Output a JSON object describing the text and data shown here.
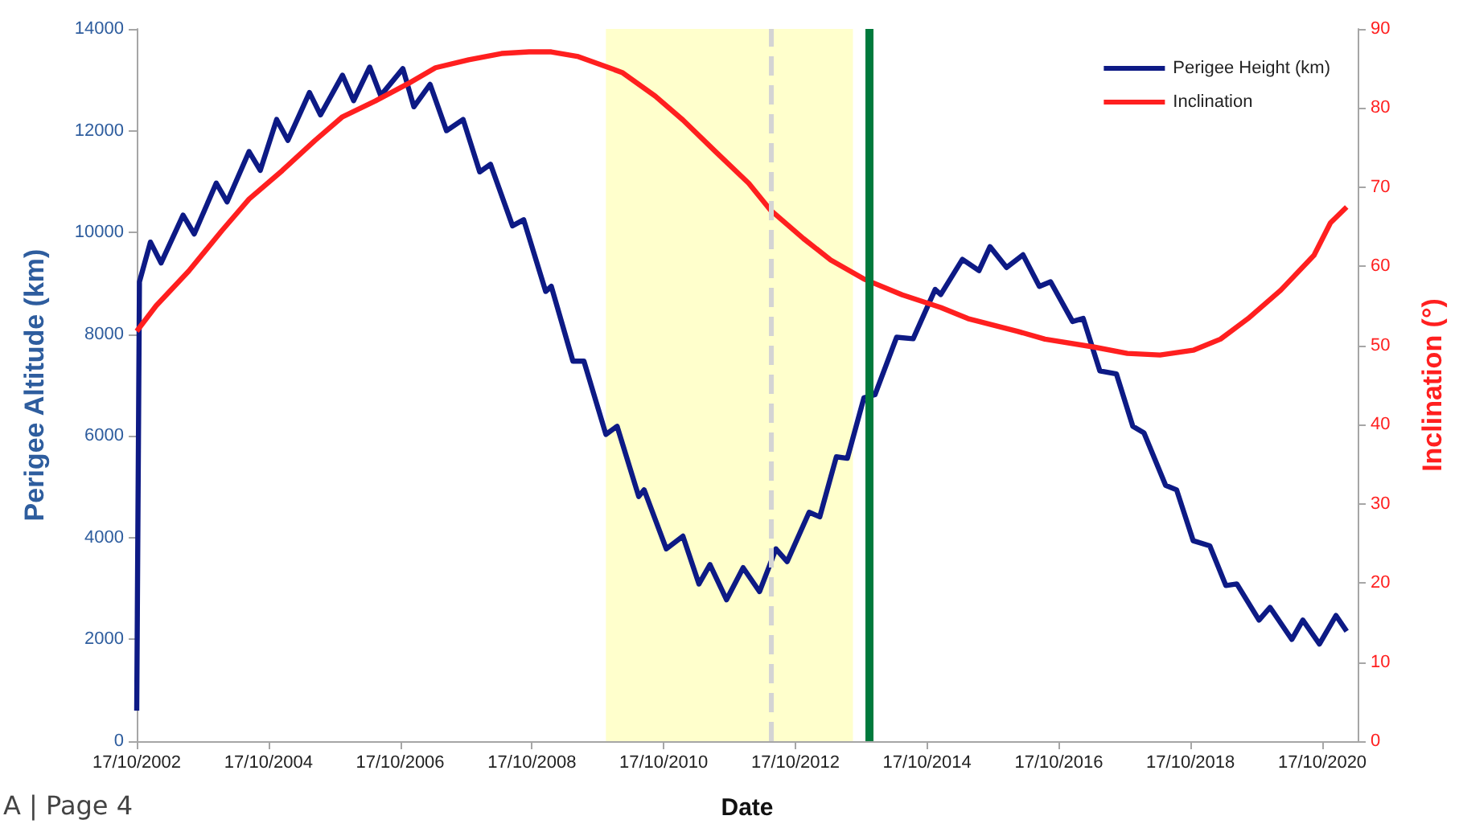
{
  "chart_data": {
    "type": "line",
    "xlabel": "Date",
    "ylabel": "Perigee Altitude (km)",
    "y2label": "Inclination (°)",
    "legend": "top right",
    "xlim": [
      "2002-10-17",
      "2021-05-01"
    ],
    "xticks": [
      {
        "value": "2002-10-17",
        "label": "17/10/2002"
      },
      {
        "value": "2004-10-17",
        "label": "17/10/2004"
      },
      {
        "value": "2006-10-17",
        "label": "17/10/2006"
      },
      {
        "value": "2008-10-17",
        "label": "17/10/2008"
      },
      {
        "value": "2010-10-17",
        "label": "17/10/2010"
      },
      {
        "value": "2012-10-17",
        "label": "17/10/2012"
      },
      {
        "value": "2014-10-17",
        "label": "17/10/2014"
      },
      {
        "value": "2016-10-17",
        "label": "17/10/2016"
      },
      {
        "value": "2018-10-17",
        "label": "17/10/2018"
      },
      {
        "value": "2020-10-17",
        "label": "17/10/2020"
      }
    ],
    "ylim": [
      0,
      14000
    ],
    "yticks": [
      0,
      2000,
      4000,
      6000,
      8000,
      10000,
      12000,
      14000
    ],
    "y2lim": [
      0,
      90
    ],
    "y2ticks": [
      0,
      10,
      20,
      30,
      40,
      50,
      60,
      70,
      80,
      90
    ],
    "series": [
      {
        "name": "Perigee Height (km)",
        "color": "#0d1a85",
        "x": [
          "2002-10-17",
          "2002-11",
          "2003-01",
          "2003-03",
          "2003-07",
          "2003-09",
          "2004-01",
          "2004-03",
          "2004-07",
          "2004-09",
          "2004-12",
          "2005-02",
          "2005-06",
          "2005-08",
          "2005-12",
          "2006-02",
          "2006-05",
          "2006-07",
          "2006-11",
          "2007-01",
          "2007-04",
          "2007-07",
          "2007-10",
          "2008-01",
          "2008-03",
          "2008-07",
          "2008-09",
          "2009-01",
          "2009-02",
          "2009-06",
          "2009-08",
          "2009-10",
          "2009-12",
          "2010-02",
          "2010-06",
          "2010-07",
          "2010-11",
          "2011-02",
          "2011-05",
          "2011-07",
          "2011-10",
          "2012-01",
          "2012-04",
          "2012-07",
          "2012-09",
          "2013-01",
          "2013-03",
          "2013-06",
          "2013-08",
          "2013-11",
          "2014-01",
          "2014-05",
          "2014-08",
          "2014-12",
          "2015-01",
          "2015-05",
          "2015-08",
          "2015-10",
          "2016-01",
          "2016-04",
          "2016-07",
          "2016-09",
          "2017-01",
          "2017-03",
          "2017-06",
          "2017-09",
          "2017-12",
          "2018-02",
          "2018-06",
          "2018-08",
          "2018-11",
          "2019-02",
          "2019-05",
          "2019-07",
          "2019-11",
          "2020-01",
          "2020-05",
          "2020-07",
          "2020-10",
          "2021-01",
          "2021-03"
        ],
        "values": [
          600,
          9030,
          9810,
          9400,
          10340,
          9970,
          10970,
          10600,
          11590,
          11220,
          12220,
          11810,
          12750,
          12310,
          13090,
          12590,
          13250,
          12690,
          13220,
          12470,
          12910,
          12000,
          12220,
          11190,
          11340,
          10130,
          10250,
          8840,
          8940,
          7470,
          7470,
          6750,
          6030,
          6190,
          4810,
          4940,
          3780,
          4030,
          3090,
          3470,
          2780,
          3410,
          2940,
          3780,
          3530,
          4500,
          4410,
          5590,
          5560,
          6750,
          6810,
          7940,
          7910,
          8880,
          8780,
          9470,
          9250,
          9720,
          9310,
          9560,
          8940,
          9030,
          8250,
          8310,
          7280,
          7220,
          6190,
          6060,
          5030,
          4940,
          3940,
          3840,
          3060,
          3090,
          2380,
          2630,
          2000,
          2380,
          1910,
          2470,
          2160
        ]
      },
      {
        "name": "Inclination",
        "color": "#ff1f1f",
        "axis": "y2",
        "x": [
          "2002-10-17",
          "2003-02",
          "2003-08",
          "2004-02",
          "2004-07",
          "2005-01",
          "2005-07",
          "2005-12",
          "2006-06",
          "2006-12",
          "2007-05",
          "2007-11",
          "2008-05",
          "2008-10",
          "2009-02",
          "2009-07",
          "2010-03",
          "2010-09",
          "2011-02",
          "2011-08",
          "2012-02",
          "2012-06",
          "2012-12",
          "2013-05",
          "2013-11",
          "2014-06",
          "2015-01",
          "2015-06",
          "2016-03",
          "2016-08",
          "2017-05",
          "2017-11",
          "2018-05",
          "2018-11",
          "2019-04",
          "2019-09",
          "2020-03",
          "2020-09",
          "2020-12",
          "2021-03"
        ],
        "values": [
          51.8,
          55.0,
          59.4,
          64.5,
          68.5,
          72.1,
          75.9,
          78.9,
          80.9,
          83.1,
          85.1,
          86.1,
          86.9,
          87.1,
          87.1,
          86.5,
          84.5,
          81.5,
          78.5,
          74.5,
          70.5,
          67.1,
          63.5,
          60.8,
          58.4,
          56.4,
          54.8,
          53.4,
          51.8,
          50.8,
          49.8,
          49.0,
          48.8,
          49.4,
          50.8,
          53.4,
          57.0,
          61.4,
          65.5,
          67.5
        ]
      }
    ],
    "bands": [
      {
        "axis": "x",
        "from": "2009-12",
        "to": "2013-09",
        "color": "#ffffcc"
      }
    ],
    "ref_lines": [
      {
        "axis": "x",
        "value": "2012-06",
        "color": "#d4d4d4",
        "line_style": "dashed"
      },
      {
        "axis": "x",
        "value": "2013-12",
        "color": "#007a3d",
        "line_style": "solid"
      }
    ],
    "annotations": [
      "A | Page 4"
    ]
  }
}
